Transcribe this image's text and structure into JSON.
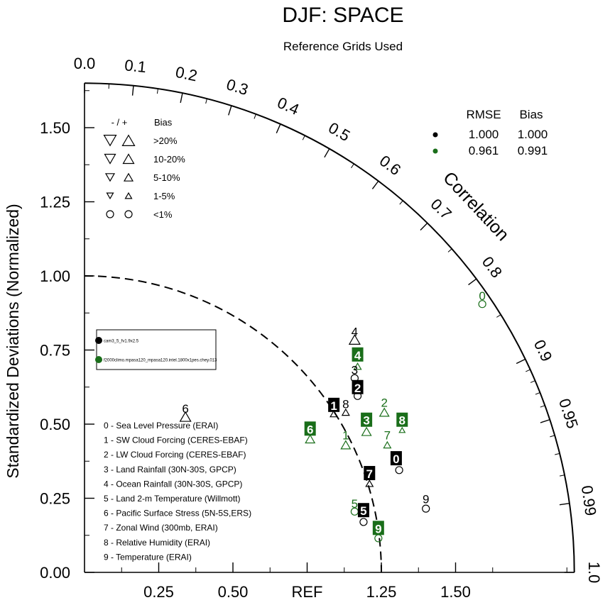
{
  "title": "DJF: SPACE",
  "subtitle": "Reference Grids Used",
  "chart_data": {
    "type": "scatter",
    "plot_kind": "taylor diagram",
    "title": "DJF: SPACE",
    "subtitle": "Reference Grids Used",
    "ylabel": "Standardized Deviations (Normalized)",
    "arc_label": "Correlation",
    "ref_label": "REF",
    "std_range": [
      0,
      1.65
    ],
    "y_ticks": [
      "0.00",
      "0.25",
      "0.50",
      "0.75",
      "1.00",
      "1.25",
      "1.50"
    ],
    "x_ticks": [
      "0.25",
      "0.50",
      "REF",
      "1.25",
      "1.50"
    ],
    "corr_ticks": [
      "0.0",
      "0.1",
      "0.2",
      "0.3",
      "0.4",
      "0.5",
      "0.6",
      "0.7",
      "0.8",
      "0.9",
      "0.95",
      "0.99",
      "1.0"
    ],
    "bias_legend": {
      "header_sign": "- / +",
      "header_bias": "Bias",
      "rows": [
        ">20%",
        "10-20%",
        "5-10%",
        "1-5%",
        "<1%"
      ]
    },
    "summary_table": {
      "headers": [
        "RMSE",
        "Bias"
      ],
      "rows": [
        {
          "color": "#000000",
          "rmse": "1.000",
          "bias": "1.000"
        },
        {
          "color": "#1a6e1a",
          "rmse": "0.961",
          "bias": "0.991"
        }
      ]
    },
    "cases": [
      {
        "name": "cam3_5_fv1.9x2.5",
        "color": "#000000"
      },
      {
        "name": "f2000climo.mpasa120_mpasa120.intel.1800x1pes.chey.013",
        "color": "#1a6e1a"
      }
    ],
    "variables": [
      "0 - Sea Level Pressure (ERAI)",
      "1 - SW Cloud Forcing (CERES-EBAF)",
      "2 - LW Cloud Forcing (CERES-EBAF)",
      "3 - Land Rainfall (30N-30S, GPCP)",
      "4 - Ocean Rainfall (30N-30S, GPCP)",
      "5 - Land 2-m Temperature (Willmott)",
      "6 - Pacific Surface Stress (5N-5S,ERS)",
      "7 - Zonal Wind (300mb, ERAI)",
      "8 - Relative Humidity (ERAI)",
      "9 - Temperature (ERAI)"
    ],
    "series": [
      {
        "name": "cam3_5_fv1.9x2.5",
        "color": "#000000",
        "points": [
          {
            "id": "0",
            "x": 1.06,
            "y": 0.345,
            "marker": "circle"
          },
          {
            "id": "1",
            "x": 0.84,
            "y": 0.535,
            "marker": "triangle-up-small"
          },
          {
            "id": "2",
            "x": 0.92,
            "y": 0.595,
            "marker": "circle"
          },
          {
            "id": "3",
            "x": 0.91,
            "y": 0.655,
            "marker": "circle"
          },
          {
            "id": "4",
            "x": 0.91,
            "y": 0.785,
            "marker": "triangle-up-large"
          },
          {
            "id": "5",
            "x": 0.94,
            "y": 0.17,
            "marker": "circle"
          },
          {
            "id": "6",
            "x": 0.34,
            "y": 0.525,
            "marker": "triangle-up-large"
          },
          {
            "id": "7",
            "x": 0.96,
            "y": 0.3,
            "marker": "triangle-up-small"
          },
          {
            "id": "8",
            "x": 0.88,
            "y": 0.54,
            "marker": "triangle-up-small"
          },
          {
            "id": "9",
            "x": 1.15,
            "y": 0.215,
            "marker": "circle"
          }
        ]
      },
      {
        "name": "f2000climo.mpasa120_mpasa120.intel.1800x1pes.chey.013",
        "color": "#1a6e1a",
        "points": [
          {
            "id": "0",
            "x": 1.34,
            "y": 0.905,
            "marker": "circle"
          },
          {
            "id": "1",
            "x": 0.88,
            "y": 0.43,
            "marker": "triangle-up-medium"
          },
          {
            "id": "2",
            "x": 1.01,
            "y": 0.54,
            "marker": "triangle-up-medium"
          },
          {
            "id": "3",
            "x": 0.95,
            "y": 0.475,
            "marker": "triangle-up-medium"
          },
          {
            "id": "4",
            "x": 0.92,
            "y": 0.695,
            "marker": "triangle-up-small"
          },
          {
            "id": "5",
            "x": 0.91,
            "y": 0.205,
            "marker": "circle"
          },
          {
            "id": "6",
            "x": 0.76,
            "y": 0.45,
            "marker": "triangle-up-medium"
          },
          {
            "id": "7",
            "x": 1.02,
            "y": 0.43,
            "marker": "triangle-up-small"
          },
          {
            "id": "8",
            "x": 1.07,
            "y": 0.48,
            "marker": "triangle-up-tiny"
          },
          {
            "id": "9",
            "x": 0.99,
            "y": 0.115,
            "marker": "circle"
          }
        ]
      }
    ],
    "labels": [
      {
        "id": "0",
        "series": 0,
        "style": "boxed",
        "x": 1.05,
        "y": 0.385
      },
      {
        "id": "1",
        "series": 0,
        "style": "boxed",
        "x": 0.84,
        "y": 0.565
      },
      {
        "id": "2",
        "series": 0,
        "style": "boxed",
        "x": 0.92,
        "y": 0.625
      },
      {
        "id": "3",
        "series": 0,
        "style": "plain",
        "x": 0.91,
        "y": 0.685
      },
      {
        "id": "4",
        "series": 0,
        "style": "plain",
        "x": 0.91,
        "y": 0.815
      },
      {
        "id": "5",
        "series": 0,
        "style": "boxed",
        "x": 0.94,
        "y": 0.21
      },
      {
        "id": "6",
        "series": 0,
        "style": "plain",
        "x": 0.34,
        "y": 0.555
      },
      {
        "id": "7",
        "series": 0,
        "style": "boxed",
        "x": 0.96,
        "y": 0.335
      },
      {
        "id": "8",
        "series": 0,
        "style": "plain",
        "x": 0.88,
        "y": 0.57
      },
      {
        "id": "9",
        "series": 0,
        "style": "plain",
        "x": 1.15,
        "y": 0.25
      },
      {
        "id": "0",
        "series": 1,
        "style": "plain",
        "x": 1.34,
        "y": 0.935
      },
      {
        "id": "1",
        "series": 1,
        "style": "plain",
        "x": 0.88,
        "y": 0.465
      },
      {
        "id": "2",
        "series": 1,
        "style": "plain",
        "x": 1.01,
        "y": 0.575
      },
      {
        "id": "3",
        "series": 1,
        "style": "boxed",
        "x": 0.95,
        "y": 0.515
      },
      {
        "id": "4",
        "series": 1,
        "style": "boxed",
        "x": 0.92,
        "y": 0.735
      },
      {
        "id": "5",
        "series": 1,
        "style": "plain",
        "x": 0.91,
        "y": 0.235
      },
      {
        "id": "6",
        "series": 1,
        "style": "boxed",
        "x": 0.76,
        "y": 0.485
      },
      {
        "id": "7",
        "series": 1,
        "style": "plain",
        "x": 1.02,
        "y": 0.465
      },
      {
        "id": "8",
        "series": 1,
        "style": "boxed",
        "x": 1.07,
        "y": 0.515
      },
      {
        "id": "9",
        "series": 1,
        "style": "boxed",
        "x": 0.99,
        "y": 0.15
      }
    ]
  }
}
